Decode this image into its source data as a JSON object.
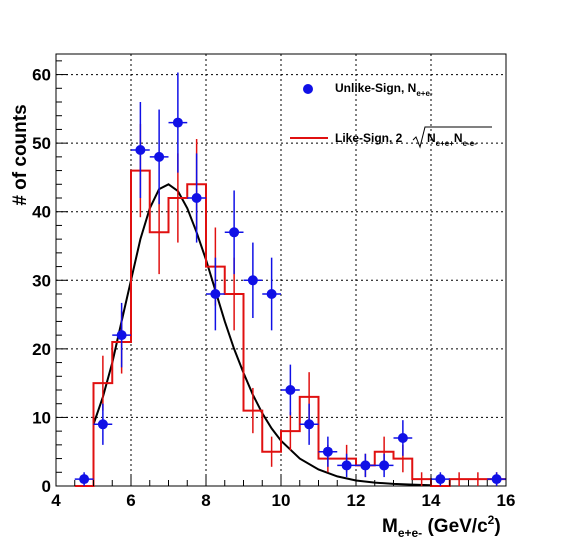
{
  "chart_data": {
    "type": "scatter",
    "xlabel": "M",
    "xlabel_sub": "e+e-",
    "xlabel_unit": " (GeV/c",
    "xlabel_unit_sup": "2",
    "xlabel_unit_end": ")",
    "ylabel": "# of counts",
    "xlim": [
      4,
      16
    ],
    "ylim": [
      0,
      63
    ],
    "xticks": [
      4,
      6,
      8,
      10,
      12,
      14,
      16
    ],
    "yticks": [
      0,
      10,
      20,
      30,
      40,
      50,
      60
    ],
    "grid": true,
    "legend_position": "top-right",
    "colors": {
      "unlike": "#1010e6",
      "like": "#e01010",
      "fit": "#000000"
    },
    "legend": {
      "unlike_label": "Unlike-Sign, N",
      "unlike_sub": "e+e-",
      "like_label": "Like-Sign, 2",
      "like_sqrt_a": "N",
      "like_sqrt_a_sub": "e+e+",
      "like_sqrt_b": "N",
      "like_sqrt_b_sub": "e-e-"
    },
    "unlike_sign": {
      "name": "Unlike-Sign",
      "x": [
        4.75,
        5.25,
        5.75,
        6.25,
        6.75,
        7.25,
        7.75,
        8.25,
        8.75,
        9.25,
        9.75,
        10.25,
        10.75,
        11.25,
        11.75,
        12.25,
        12.75,
        13.25,
        14.25,
        15.75
      ],
      "y": [
        1,
        9,
        22,
        49,
        48,
        53,
        42,
        28,
        37,
        30,
        28,
        14,
        9,
        5,
        3,
        3,
        3,
        7,
        1,
        1
      ],
      "yerr": [
        1,
        3,
        4.7,
        7,
        6.9,
        7.3,
        6.5,
        5.3,
        6.1,
        5.5,
        5.3,
        3.7,
        3,
        2.2,
        1.7,
        1.7,
        1.7,
        2.6,
        1,
        1
      ]
    },
    "like_sign": {
      "name": "Like-Sign",
      "edges": [
        4.5,
        5.0,
        5.5,
        6.0,
        6.5,
        7.0,
        7.5,
        8.0,
        8.5,
        9.0,
        9.5,
        10.0,
        10.5,
        11.0,
        11.5,
        12.0,
        12.5,
        13.0,
        13.5,
        14.0,
        14.5,
        15.0,
        15.5,
        16.0
      ],
      "values": [
        0,
        15,
        21,
        46,
        37,
        42,
        44,
        32,
        28,
        11,
        5,
        8,
        13,
        4,
        4,
        3,
        5,
        4,
        1,
        0,
        1,
        1,
        1
      ],
      "yerr": [
        0,
        4,
        4.6,
        6.8,
        6.1,
        6.5,
        6.6,
        5.7,
        5.3,
        3.3,
        2.2,
        2.8,
        3.6,
        2,
        2,
        1.7,
        2.2,
        2,
        1,
        0,
        1,
        1,
        1
      ]
    },
    "fit_curve": {
      "x": [
        5.0,
        5.25,
        5.5,
        5.75,
        6.0,
        6.25,
        6.5,
        6.75,
        7.0,
        7.25,
        7.5,
        7.75,
        8.0,
        8.25,
        8.5,
        8.75,
        9.0,
        9.25,
        9.5,
        9.75,
        10.0,
        10.5,
        11.0,
        11.5,
        12.0,
        12.5,
        13.0,
        13.5,
        14.0
      ],
      "y": [
        9,
        13,
        18,
        24,
        30,
        36,
        40.5,
        43.3,
        44,
        43,
        40.5,
        37,
        33,
        28.5,
        24,
        20,
        16.5,
        13.3,
        10.6,
        8.4,
        6.6,
        4.0,
        2.4,
        1.4,
        0.8,
        0.5,
        0.3,
        0.2,
        0.1
      ]
    }
  }
}
